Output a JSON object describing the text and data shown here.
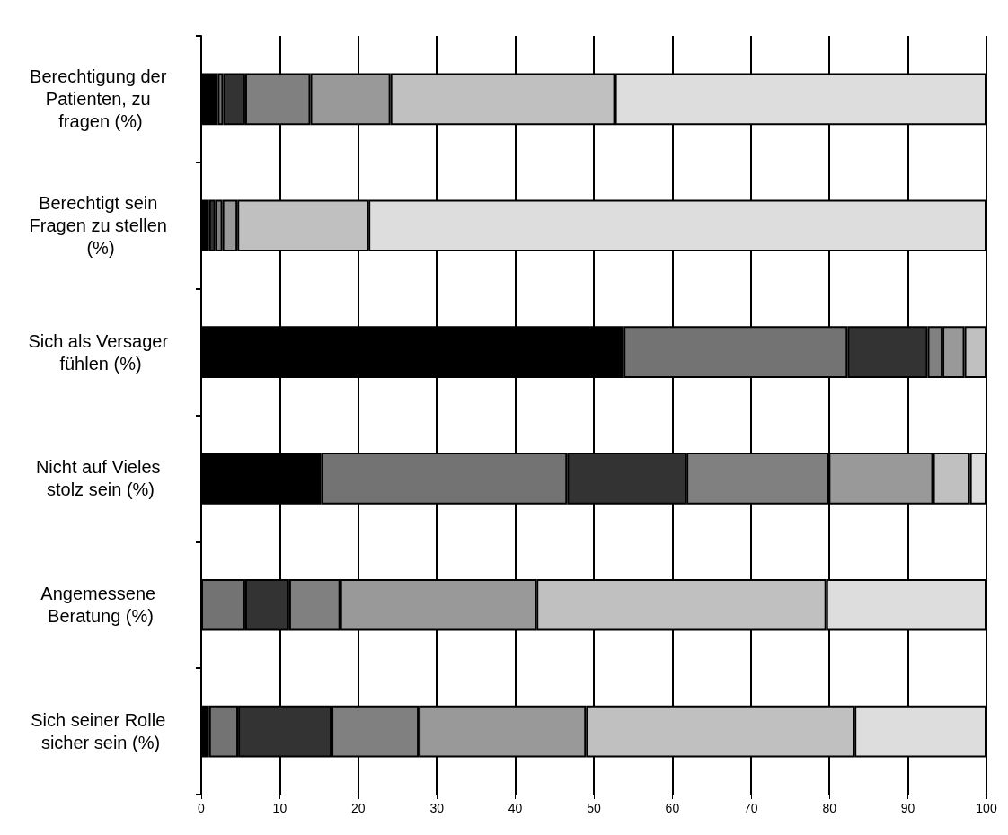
{
  "chart_data": {
    "type": "bar",
    "orientation": "horizontal",
    "stacked": true,
    "categories": [
      "Berechtigung der Patienten, zu fragen (%)",
      "Berechtigt sein Fragen zu stellen (%)",
      "Sich als Versager fühlen (%)",
      "Nicht auf Vieles stolz sein (%)",
      "Angemessene Beratung (%)",
      "Sich seiner Rolle sicher sein (%)"
    ],
    "series": [
      {
        "color": "#000000",
        "values": [
          2.1,
          1.0,
          53.8,
          15.3,
          0,
          1.0
        ]
      },
      {
        "color": "#737373",
        "values": [
          0.7,
          0,
          28.5,
          31.3,
          5.6,
          3.7
        ]
      },
      {
        "color": "#333333",
        "values": [
          2.8,
          0.8,
          10.2,
          15.2,
          5.6,
          11.9
        ]
      },
      {
        "color": "#808080",
        "values": [
          8.3,
          0.9,
          1.9,
          18.1,
          6.5,
          11.1
        ]
      },
      {
        "color": "#999999",
        "values": [
          10.2,
          1.9,
          2.8,
          13.3,
          25.0,
          21.3
        ]
      },
      {
        "color": "#c0c0c0",
        "values": [
          28.6,
          16.7,
          2.8,
          4.7,
          36.9,
          34.2
        ]
      },
      {
        "color": "#dddddd",
        "values": [
          47.3,
          78.7,
          0,
          2.1,
          20.4,
          16.8
        ]
      }
    ],
    "xlim": [
      0,
      100
    ],
    "xticks": [
      0,
      10,
      20,
      30,
      40,
      50,
      60,
      70,
      80,
      90,
      100
    ],
    "grid": "x"
  }
}
